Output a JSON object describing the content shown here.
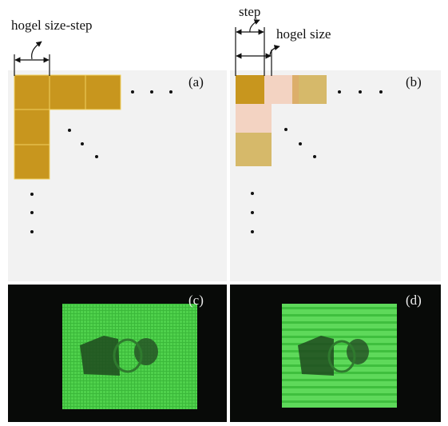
{
  "panels": [
    {
      "label": "(a)",
      "annotations": [
        "hogel size-step"
      ]
    },
    {
      "label": "(b)",
      "annotations": [
        "step",
        "hogel size"
      ]
    },
    {
      "label": "(c)"
    },
    {
      "label": "(d)"
    }
  ]
}
